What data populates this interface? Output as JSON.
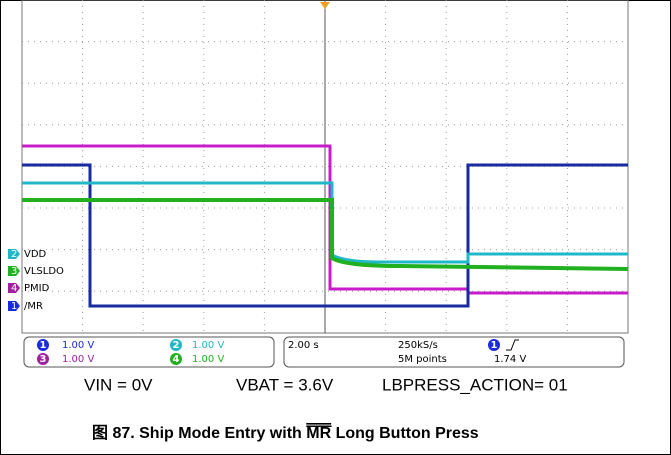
{
  "scope": {
    "channels": [
      {
        "number": "2",
        "label": "VDD"
      },
      {
        "number": "3",
        "label": "VLSLDO"
      },
      {
        "number": "4",
        "label": "PMID"
      },
      {
        "number": "1",
        "label": "/MR"
      }
    ],
    "status": {
      "ch1": {
        "number": "1",
        "scale": "1.00 V"
      },
      "ch2": {
        "number": "2",
        "scale": "1.00 V"
      },
      "ch3": {
        "number": "3",
        "scale": "1.00 V"
      },
      "ch4": {
        "number": "4",
        "scale": "1.00 V"
      },
      "timebase": "2.00 s",
      "sample_rate": "250kS/s",
      "record_length": "5M points",
      "trigger_channel": "1",
      "trigger_level": "1.74 V"
    }
  },
  "conditions": [
    "VIN = 0V",
    "VBAT = 3.6V",
    "LBPRESS_ACTION= 01"
  ],
  "caption": {
    "prefix": "图 87. Ship Mode Entry with ",
    "overline": "MR",
    "suffix": " Long Button Press"
  }
}
